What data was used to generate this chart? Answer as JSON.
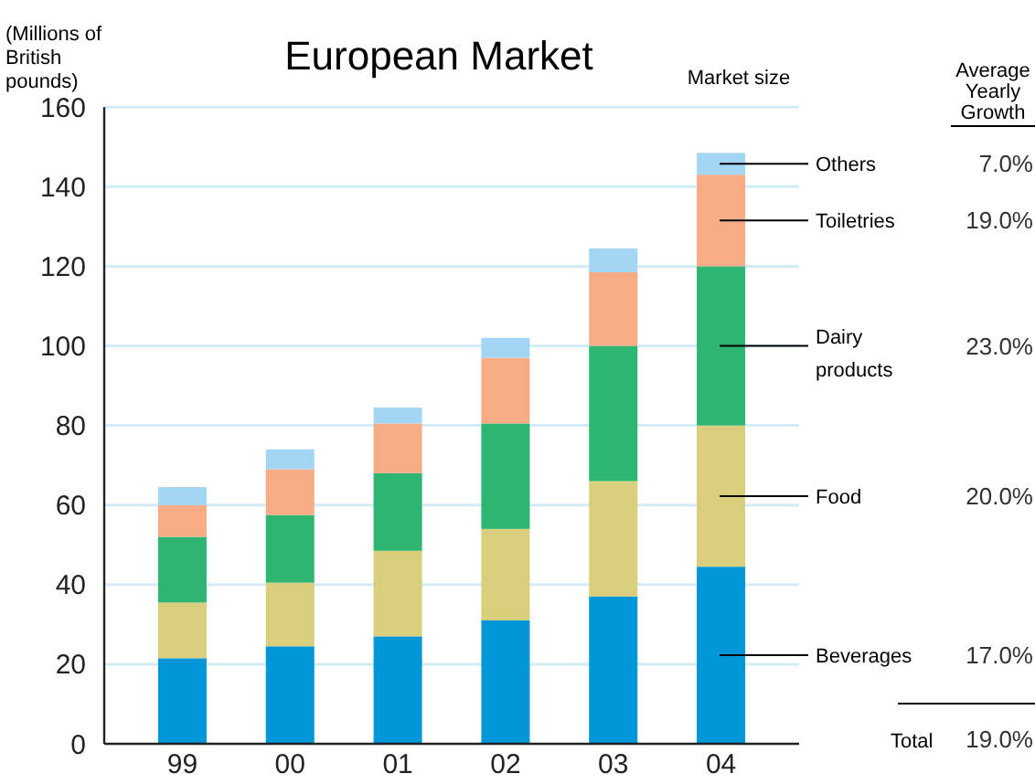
{
  "chart_data": {
    "type": "bar",
    "title": "European Market",
    "ylabel": "(Millions of British pounds)",
    "categories": [
      "99",
      "00",
      "01",
      "02",
      "03",
      "04"
    ],
    "stacked": true,
    "series": [
      {
        "name": "Beverages",
        "color": "#0096d8",
        "values": [
          21.5,
          24.5,
          27,
          31,
          37,
          44.5
        ]
      },
      {
        "name": "Food",
        "color": "#d8ce7c",
        "values": [
          14,
          16,
          21.5,
          23,
          29,
          35.5
        ]
      },
      {
        "name": "Dairy products",
        "color": "#2db571",
        "values": [
          16.5,
          17,
          19.5,
          26.5,
          34,
          40
        ]
      },
      {
        "name": "Toiletries",
        "color": "#f7ac86",
        "values": [
          8,
          11.5,
          12.5,
          16.5,
          18.5,
          23
        ]
      },
      {
        "name": "Others",
        "color": "#a3d6f4",
        "values": [
          4.5,
          5,
          4,
          5,
          6,
          5.5
        ]
      }
    ],
    "ylim": [
      0,
      160
    ],
    "yticks": [
      0,
      20,
      40,
      60,
      80,
      100,
      120,
      140,
      160
    ],
    "grid": "y",
    "annotations": [
      "Market size",
      "Average Yearly Growth",
      "17.0%",
      "20.0%",
      "23.0%",
      "19.0%",
      "7.0%",
      "Total",
      "19.0%"
    ]
  }
}
